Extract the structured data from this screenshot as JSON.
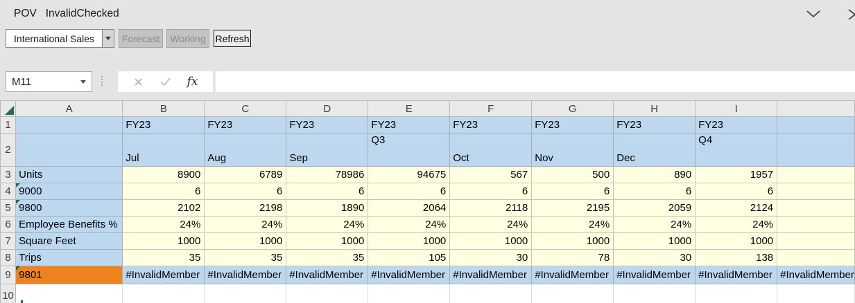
{
  "window": {
    "title_prefix": "POV",
    "title_name": "InvalidChecked"
  },
  "toolbar": {
    "pov_member": "International Sales",
    "forecast_label": "Forecast",
    "working_label": "Working",
    "refresh_label": "Refresh"
  },
  "formula_bar": {
    "name_box_value": "M11",
    "fx_label": "fx",
    "formula_value": ""
  },
  "grid": {
    "column_headers": [
      "A",
      "B",
      "C",
      "D",
      "E",
      "F",
      "G",
      "H",
      "I"
    ],
    "header_rows": [
      {
        "num": "1",
        "cells": [
          "FY23",
          "FY23",
          "FY23",
          "FY23",
          "FY23",
          "FY23",
          "FY23",
          "FY23"
        ]
      },
      {
        "num": "2",
        "cells": [
          {
            "text": "Jul",
            "pos": "bottom"
          },
          {
            "text": "Aug",
            "pos": "bottom"
          },
          {
            "text": "Sep",
            "pos": "bottom"
          },
          {
            "text": "Q3",
            "pos": "top"
          },
          {
            "text": "Oct",
            "pos": "bottom"
          },
          {
            "text": "Nov",
            "pos": "bottom"
          },
          {
            "text": "Dec",
            "pos": "bottom"
          },
          {
            "text": "Q4",
            "pos": "top"
          }
        ]
      }
    ],
    "data_rows": [
      {
        "num": "3",
        "label": "Units",
        "error_flag": false,
        "label_style": "blue",
        "cell_style": "yellow",
        "align": "right",
        "clipped_value": "",
        "values": [
          "8900",
          "6789",
          "78986",
          "94675",
          "567",
          "500",
          "890",
          "1957"
        ]
      },
      {
        "num": "4",
        "label": "9000",
        "error_flag": true,
        "label_style": "blue",
        "cell_style": "yellow",
        "align": "right",
        "clipped_value": "",
        "values": [
          "6",
          "6",
          "6",
          "6",
          "6",
          "6",
          "6",
          "6"
        ]
      },
      {
        "num": "5",
        "label": "9800",
        "error_flag": true,
        "label_style": "blue",
        "cell_style": "yellow",
        "align": "right",
        "clipped_value": "",
        "values": [
          "2102",
          "2198",
          "1890",
          "2064",
          "2118",
          "2195",
          "2059",
          "2124"
        ]
      },
      {
        "num": "6",
        "label": "Employee Benefits %",
        "error_flag": false,
        "label_style": "blue",
        "cell_style": "yellow",
        "align": "right",
        "clipped_value": "",
        "values": [
          "24%",
          "24%",
          "24%",
          "24%",
          "24%",
          "24%",
          "24%",
          "24%"
        ]
      },
      {
        "num": "7",
        "label": "Square Feet",
        "error_flag": false,
        "label_style": "blue",
        "cell_style": "yellow",
        "align": "right",
        "clipped_value": "",
        "values": [
          "1000",
          "1000",
          "1000",
          "1000",
          "1000",
          "1000",
          "1000",
          "1000"
        ]
      },
      {
        "num": "8",
        "label": "Trips",
        "error_flag": false,
        "label_style": "blue",
        "cell_style": "yellow",
        "align": "right",
        "clipped_value": "",
        "values": [
          "35",
          "35",
          "35",
          "105",
          "30",
          "78",
          "30",
          "138"
        ]
      },
      {
        "num": "9",
        "label": "9801",
        "error_flag": true,
        "label_style": "orange",
        "cell_style": "blue",
        "align": "left",
        "clipped_value": "#InvalidMember",
        "values": [
          "#InvalidMember",
          "#InvalidMember",
          "#InvalidMember",
          "#InvalidMember",
          "#InvalidMember",
          "#InvalidMember",
          "#InvalidMember",
          "#InvalidMember"
        ]
      },
      {
        "num": "10",
        "label": "",
        "error_flag": false,
        "label_style": "white",
        "cell_style": "white",
        "align": "left",
        "clipped_value": "",
        "values": [
          "",
          "",
          "",
          "",
          "",
          "",
          "",
          ""
        ]
      }
    ]
  },
  "colors": {
    "chrome_bg": "#E4E4E4",
    "member_header_fill": "#BDD7EE",
    "data_cell_fill": "#FFFFE1",
    "invalid_member_fill": "#F0821E",
    "error_indicator_green": "#1E7145",
    "select_all_green": "#2D6A4A"
  }
}
